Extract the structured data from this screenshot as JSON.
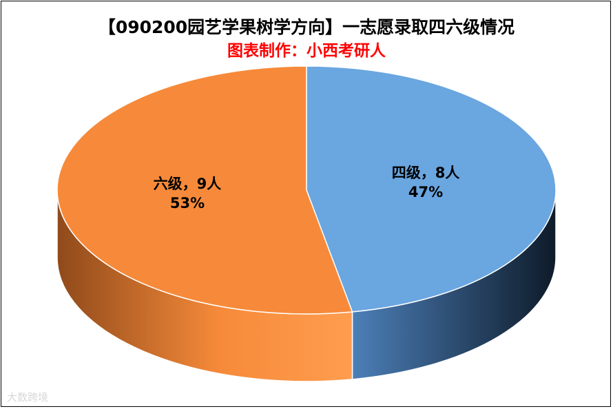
{
  "chart_data": {
    "type": "pie",
    "style": "3d",
    "title": "【090200园艺学果树学方向】一志愿录取四六级情况",
    "subtitle": "图表制作：小西考研人",
    "slices": [
      {
        "name": "四级",
        "value": 8,
        "percent": "47%",
        "label_line1": "四级，8人",
        "label_line2": "47%",
        "color": "#6aa6e0",
        "side_color": "#3e5f82"
      },
      {
        "name": "六级",
        "value": 9,
        "percent": "53%",
        "label_line1": "六级，9人",
        "label_line2": "53%",
        "color": "#f68a3a",
        "side_color": "#b85f22"
      }
    ]
  },
  "colors": {
    "subtitle": "#ff0000",
    "border": "#000000"
  },
  "watermark": "大数跨境"
}
